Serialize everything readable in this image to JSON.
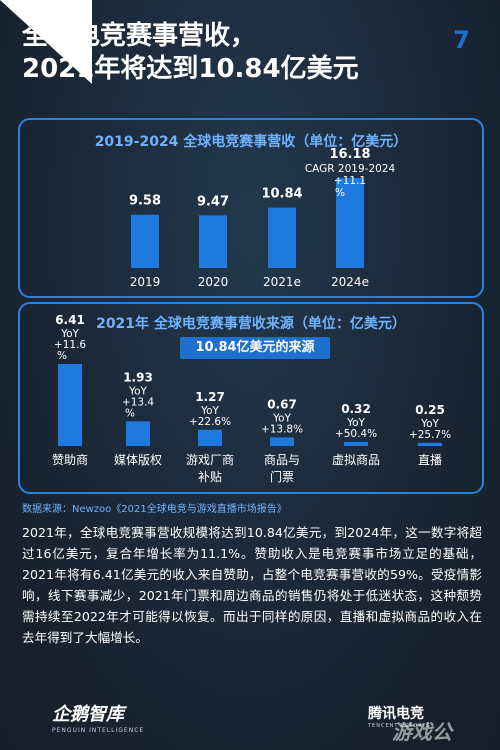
{
  "page": {
    "title_line1": "全球电竞赛事营收，",
    "title_line2": "2021年将达到10.84亿美元",
    "page_number": "7",
    "source": "数据来源：Newzoo《2021全球电竞与游戏直播市场报告》",
    "body": "2021年，全球电竞赛事营收规模将达到10.84亿美元，到2024年，这一数字将超过16亿美元，复合年增长率为11.1%。赞助收入是电竞赛事市场立足的基础，2021年将有6.41亿美元的收入来自赞助，占整个电竞赛事营收的59%。受疫情影响，线下赛事减少，2021年门票和周边商品的销售仍将处于低迷状态，这种颓势需持续至2022年才可能得以恢复。而出于同样的原因，直播和虚拟商品的收入在去年得到了大幅增长。",
    "logo_left": "企鹅智库",
    "logo_left_en": "PENGUIN INTELLIGENCE",
    "logo_right": "腾讯电竞",
    "logo_right_en": "TENCENT ESPORTS",
    "watermark": "游戏公",
    "colors": {
      "background": "#1b2735",
      "accent": "#2a82e0",
      "bar": "#1f7ae0",
      "title_blue": "#6fb2ff"
    }
  },
  "chart_data": [
    {
      "type": "bar",
      "title": "2019-2024 全球电竞赛事营收（单位：亿美元）",
      "categories": [
        "2019",
        "2020",
        "2021e",
        "2024e"
      ],
      "values": [
        9.58,
        9.47,
        10.84,
        16.18
      ],
      "value_labels": [
        "9.58",
        "9.47",
        "10.84",
        "16.18"
      ],
      "annotations": [
        {
          "category": "2024e",
          "lines": [
            "CAGR 2019-2024",
            "+11.1",
            "%"
          ]
        }
      ],
      "xlabel": "",
      "ylabel": "",
      "ylim": [
        0,
        17
      ],
      "grid": false,
      "legend": "none"
    },
    {
      "type": "bar",
      "title": "2021年 全球电竞赛事营收来源（单位：亿美元）",
      "subtitle": "10.84亿美元的来源",
      "categories": [
        {
          "lines": [
            "赞助商"
          ]
        },
        {
          "lines": [
            "媒体版权"
          ]
        },
        {
          "lines": [
            "游戏厂商",
            "补贴"
          ]
        },
        {
          "lines": [
            "商品与",
            "门票"
          ]
        },
        {
          "lines": [
            "虚拟商品"
          ]
        },
        {
          "lines": [
            "直播"
          ]
        }
      ],
      "values": [
        6.41,
        1.93,
        1.27,
        0.67,
        0.32,
        0.25
      ],
      "value_labels": [
        "6.41",
        "1.93",
        "1.27",
        "0.67",
        "0.32",
        "0.25"
      ],
      "yoy": [
        [
          "YoY",
          "+11.6",
          "%"
        ],
        [
          "YoY",
          "+13.4",
          "%"
        ],
        [
          "YoY",
          "+22.6%"
        ],
        [
          "YoY",
          "+13.8%"
        ],
        [
          "YoY",
          "+50.4%"
        ],
        [
          "YoY",
          "+25.7%"
        ]
      ],
      "xlabel": "",
      "ylabel": "",
      "ylim": [
        0,
        7
      ],
      "grid": false,
      "legend": "none"
    }
  ]
}
